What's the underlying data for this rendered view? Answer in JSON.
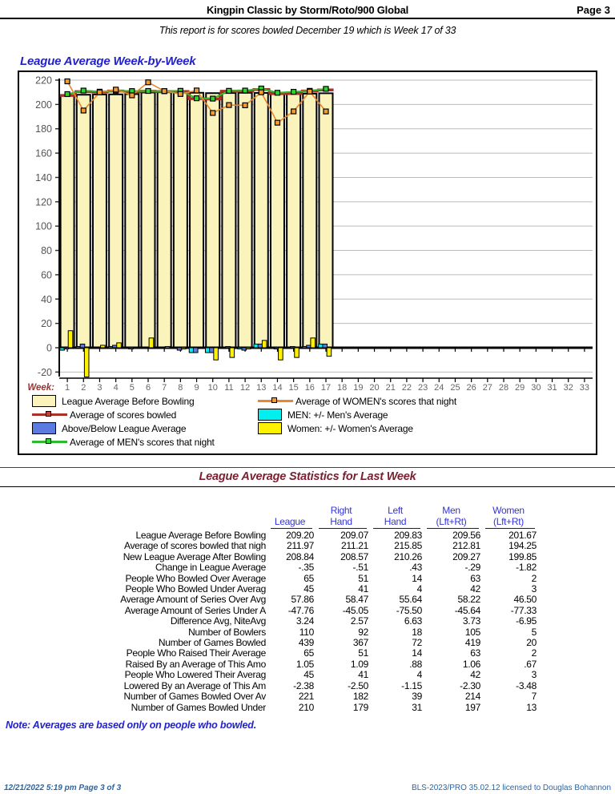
{
  "page": {
    "header_title": "Kingpin Classic by Storm/Roto/900 Global",
    "page_label": "Page 3",
    "subtitle": "This report is for scores bowled December 19   which is Week 17 of 33",
    "note": "Note: Averages are based only on people who bowled.",
    "footer_left": "12/21/2022  5:19 pm  Page 3 of 3",
    "footer_right": "BLS-2023/PRO 35.02.12 licensed to Douglas Bohannon"
  },
  "chart": {
    "title": "League Average Week-by-Week",
    "week_axis_label": "Week:",
    "legend_left": [
      {
        "type": "bar",
        "color": "#FBF3BC",
        "label": "League Average Before Bowling"
      },
      {
        "type": "line",
        "color": "#A93226",
        "marker": "#C04433",
        "label": "Average of scores bowled"
      },
      {
        "type": "bar",
        "color": "#5B7BE0",
        "label": "Above/Below League Average"
      },
      {
        "type": "line",
        "color": "#2DB82D",
        "marker": "#2DD42D",
        "label": "Average of MEN's scores that night"
      }
    ],
    "legend_right": [
      {
        "type": "line",
        "color": "#E8872B",
        "marker": "#F49A32",
        "label": "Average of WOMEN's scores that night"
      },
      {
        "type": "bar",
        "color": "#00EFEF",
        "label": "MEN: +/- Men's Average"
      },
      {
        "type": "bar",
        "color": "#FFF200",
        "label": "Women: +/- Women's Average"
      }
    ]
  },
  "chart_data": {
    "type": "bar",
    "title": "League Average Week-by-Week",
    "xlabel": "Week:",
    "ylabel": "",
    "ylim": [
      -26,
      224
    ],
    "yticks": [
      220,
      200,
      180,
      160,
      140,
      120,
      100,
      80,
      60,
      40,
      20,
      0,
      -20
    ],
    "weeks_total": 33,
    "weeks_bowled": 17,
    "categories": [
      1,
      2,
      3,
      4,
      5,
      6,
      7,
      8,
      9,
      10,
      11,
      12,
      13,
      14,
      15,
      16,
      17,
      18,
      19,
      20,
      21,
      22,
      23,
      24,
      25,
      26,
      27,
      28,
      29,
      30,
      31,
      32,
      33
    ],
    "series": [
      {
        "name": "League Average Before Bowling",
        "type": "bar",
        "color": "#FBF3BC",
        "values": [
          207.2,
          208.0,
          208.2,
          208.3,
          208.5,
          209.8,
          210.0,
          210.0,
          209.6,
          209.3,
          209.4,
          209.6,
          209.5,
          209.4,
          209.2,
          208.9,
          209.2
        ]
      },
      {
        "name": "Average of scores bowled",
        "type": "step-line",
        "color": "#A93226",
        "values": [
          207.4,
          210.5,
          210.2,
          211.0,
          210.4,
          210.9,
          210.6,
          210.6,
          204.8,
          204.5,
          210.9,
          211.0,
          212.3,
          208.9,
          209.0,
          211.0,
          211.97
        ]
      },
      {
        "name": "Average of MEN's scores that night",
        "type": "line",
        "color": "#2DB82D",
        "marker": "#2DD42D",
        "values": [
          208.5,
          211.4,
          210.5,
          211.3,
          211.0,
          211.1,
          210.9,
          211.2,
          205.1,
          204.8,
          211.2,
          211.4,
          213.1,
          209.6,
          210.4,
          211.2,
          212.81
        ]
      },
      {
        "name": "Average of WOMEN's scores that night",
        "type": "line",
        "color": "#E8872B",
        "marker": "#F49A32",
        "values": [
          219.0,
          195.0,
          210.0,
          212.2,
          207.5,
          218.2,
          211.0,
          208.6,
          211.5,
          193.0,
          199.5,
          199.3,
          210.0,
          185.0,
          194.3,
          210.6,
          194.25
        ]
      },
      {
        "name": "MEN: +/- Men's Average",
        "type": "small-bar",
        "color": "#00EFEF",
        "values": [
          -2,
          1,
          0,
          1,
          -0.5,
          0,
          0,
          0,
          -4,
          -4,
          0,
          -1,
          3,
          0,
          0,
          1,
          3
        ]
      },
      {
        "name": "Above/Below League Average",
        "type": "small-bar",
        "color": "#5B7BE0",
        "values": [
          -1,
          3,
          0,
          2,
          -1,
          0,
          0,
          -2,
          -4,
          -4,
          1,
          -2,
          3,
          -1,
          1,
          2,
          3
        ]
      },
      {
        "name": "Women: +/- Women's Average",
        "type": "small-bar",
        "color": "#FFF200",
        "values": [
          14,
          -24,
          2,
          4,
          0,
          8,
          1,
          -1,
          0,
          -10,
          -8,
          -1,
          6,
          -10,
          -8,
          8,
          -7
        ]
      }
    ]
  },
  "stats": {
    "title": "League Average Statistics for Last Week",
    "columns": [
      [
        "League"
      ],
      [
        "Right",
        "Hand"
      ],
      [
        "Left",
        "Hand"
      ],
      [
        "Men",
        "(Lft+Rt)"
      ],
      [
        "Women",
        "(Lft+Rt)"
      ]
    ],
    "rows": [
      {
        "label": "League Average Before Bowling",
        "values": [
          "209.20",
          "209.07",
          "209.83",
          "209.56",
          "201.67"
        ]
      },
      {
        "label": "Average of scores bowled that nigh",
        "values": [
          "211.97",
          "211.21",
          "215.85",
          "212.81",
          "194.25"
        ]
      },
      {
        "label": "New League Average After Bowling",
        "values": [
          "208.84",
          "208.57",
          "210.26",
          "209.27",
          "199.85"
        ]
      },
      {
        "label": "Change in League Average",
        "values": [
          "-.35",
          "-.51",
          ".43",
          "-.29",
          "-1.82"
        ]
      },
      {
        "label": "People Who Bowled Over Average",
        "values": [
          "65",
          "51",
          "14",
          "63",
          "2"
        ]
      },
      {
        "label": "People Who Bowled Under Averag",
        "values": [
          "45",
          "41",
          "4",
          "42",
          "3"
        ]
      },
      {
        "label": "Average Amount of Series Over Avg",
        "values": [
          "57.86",
          "58.47",
          "55.64",
          "58.22",
          "46.50"
        ]
      },
      {
        "label": "Average Amount of Series Under A",
        "values": [
          "-47.76",
          "-45.05",
          "-75.50",
          "-45.64",
          "-77.33"
        ]
      },
      {
        "label": "Difference Avg, NiteAvg",
        "values": [
          "3.24",
          "2.57",
          "6.63",
          "3.73",
          "-6.95"
        ]
      },
      {
        "label": "Number of Bowlers",
        "values": [
          "110",
          "92",
          "18",
          "105",
          "5"
        ]
      },
      {
        "label": "Number of Games Bowled",
        "values": [
          "439",
          "367",
          "72",
          "419",
          "20"
        ]
      },
      {
        "label": "People Who Raised Their Average",
        "values": [
          "65",
          "51",
          "14",
          "63",
          "2"
        ]
      },
      {
        "label": "Raised By an Average of This Amo",
        "values": [
          "1.05",
          "1.09",
          ".88",
          "1.06",
          ".67"
        ]
      },
      {
        "label": "People Who Lowered Their Averag",
        "values": [
          "45",
          "41",
          "4",
          "42",
          "3"
        ]
      },
      {
        "label": "Lowered By an Average of This Am",
        "values": [
          "-2.38",
          "-2.50",
          "-1.15",
          "-2.30",
          "-3.48"
        ]
      },
      {
        "label": "Number of Games Bowled Over Av",
        "values": [
          "221",
          "182",
          "39",
          "214",
          "7"
        ]
      },
      {
        "label": "Number of Games Bowled Under",
        "values": [
          "210",
          "179",
          "31",
          "197",
          "13"
        ]
      }
    ]
  }
}
